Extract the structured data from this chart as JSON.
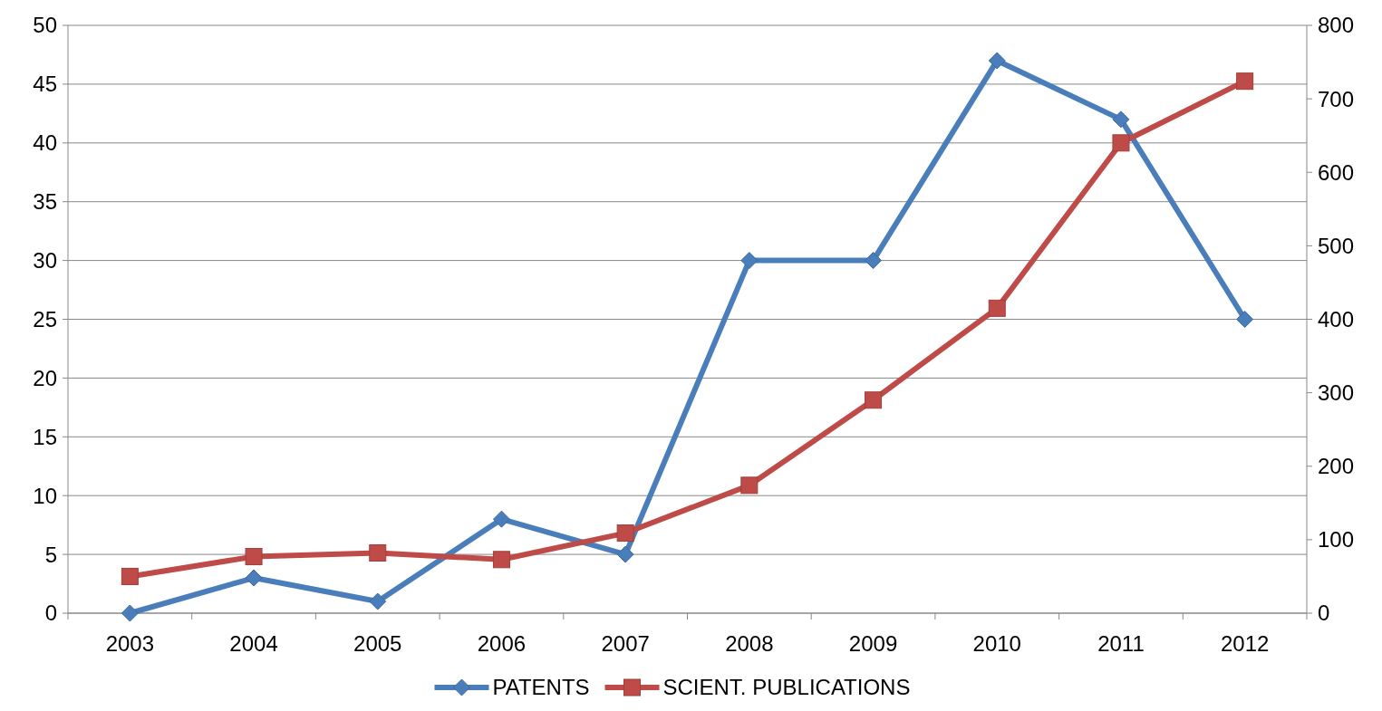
{
  "chart_data": {
    "type": "line",
    "categories": [
      "2003",
      "2004",
      "2005",
      "2006",
      "2007",
      "2008",
      "2009",
      "2010",
      "2011",
      "2012"
    ],
    "series": [
      {
        "name": "PATENTS",
        "color": "#4a7ebb",
        "marker": "diamond",
        "values": [
          0,
          3,
          1,
          8,
          5,
          30,
          30,
          47,
          42,
          25
        ]
      },
      {
        "name": "SCIENT. PUBLICATIONS",
        "color": "#be4b48",
        "marker": "square",
        "axis": "y2",
        "values": [
          50,
          77,
          82,
          73,
          109,
          174,
          290,
          415,
          640,
          724
        ]
      }
    ],
    "ylim": [
      0,
      50
    ],
    "yticks": [
      0,
      5,
      10,
      15,
      20,
      25,
      30,
      35,
      40,
      45,
      50
    ],
    "y2lim": [
      0,
      800
    ],
    "y2ticks": [
      0,
      100,
      200,
      300,
      400,
      500,
      600,
      700,
      800
    ],
    "grid": "y",
    "legend": "bottom",
    "line_style": "solid"
  }
}
